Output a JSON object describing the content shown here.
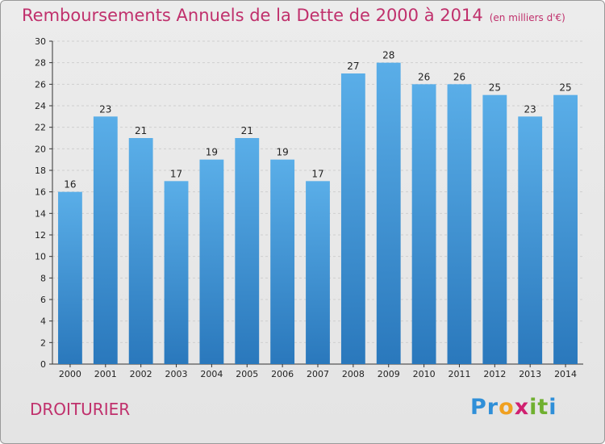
{
  "chart_data": {
    "type": "bar",
    "title": "Remboursements Annuels de la Dette de 2000 à 2014",
    "subtitle": "(en milliers d'€)",
    "categories": [
      "2000",
      "2001",
      "2002",
      "2003",
      "2004",
      "2005",
      "2006",
      "2007",
      "2008",
      "2009",
      "2010",
      "2011",
      "2012",
      "2013",
      "2014"
    ],
    "values": [
      16,
      23,
      21,
      17,
      19,
      21,
      19,
      17,
      27,
      28,
      26,
      26,
      25,
      23,
      25
    ],
    "ylim": [
      0,
      30
    ],
    "yticks": [
      0,
      2,
      4,
      6,
      8,
      10,
      12,
      14,
      16,
      18,
      20,
      22,
      24,
      26,
      28,
      30
    ],
    "grid": true,
    "bar_color_top": "#5aaee8",
    "bar_color_bottom": "#2a78bc"
  },
  "place_name": "DROITURIER",
  "logo": {
    "letters": [
      "P",
      "r",
      "o",
      "x",
      "i",
      "t",
      "i"
    ],
    "colors": [
      "#2f8fd8",
      "#2f8fd8",
      "#f0a020",
      "#d02070",
      "#70b030",
      "#70b030",
      "#2f8fd8"
    ]
  }
}
